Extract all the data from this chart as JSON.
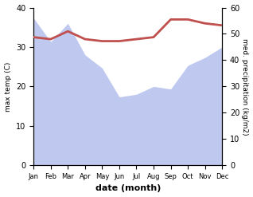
{
  "months": [
    1,
    2,
    3,
    4,
    5,
    6,
    7,
    8,
    9,
    10,
    11,
    12
  ],
  "month_labels": [
    "Jan",
    "Feb",
    "Mar",
    "Apr",
    "May",
    "Jun",
    "Jul",
    "Aug",
    "Sep",
    "Oct",
    "Nov",
    "Dec"
  ],
  "temperature": [
    32.5,
    32.0,
    34.0,
    32.0,
    31.5,
    31.5,
    32.0,
    32.5,
    37.0,
    37.0,
    36.0,
    35.5
  ],
  "precipitation": [
    56,
    47,
    54,
    42,
    37,
    26,
    27,
    30,
    29,
    38,
    41,
    45
  ],
  "temp_color": "#c0504d",
  "precip_fill_color": "#bfc8ef",
  "background_color": "#ffffff",
  "temp_ylim": [
    0,
    40
  ],
  "precip_ylim": [
    0,
    60
  ],
  "temp_ylabel": "max temp (C)",
  "precip_ylabel": "med. precipitation (kg/m2)",
  "xlabel": "date (month)",
  "temp_linewidth": 2.0
}
